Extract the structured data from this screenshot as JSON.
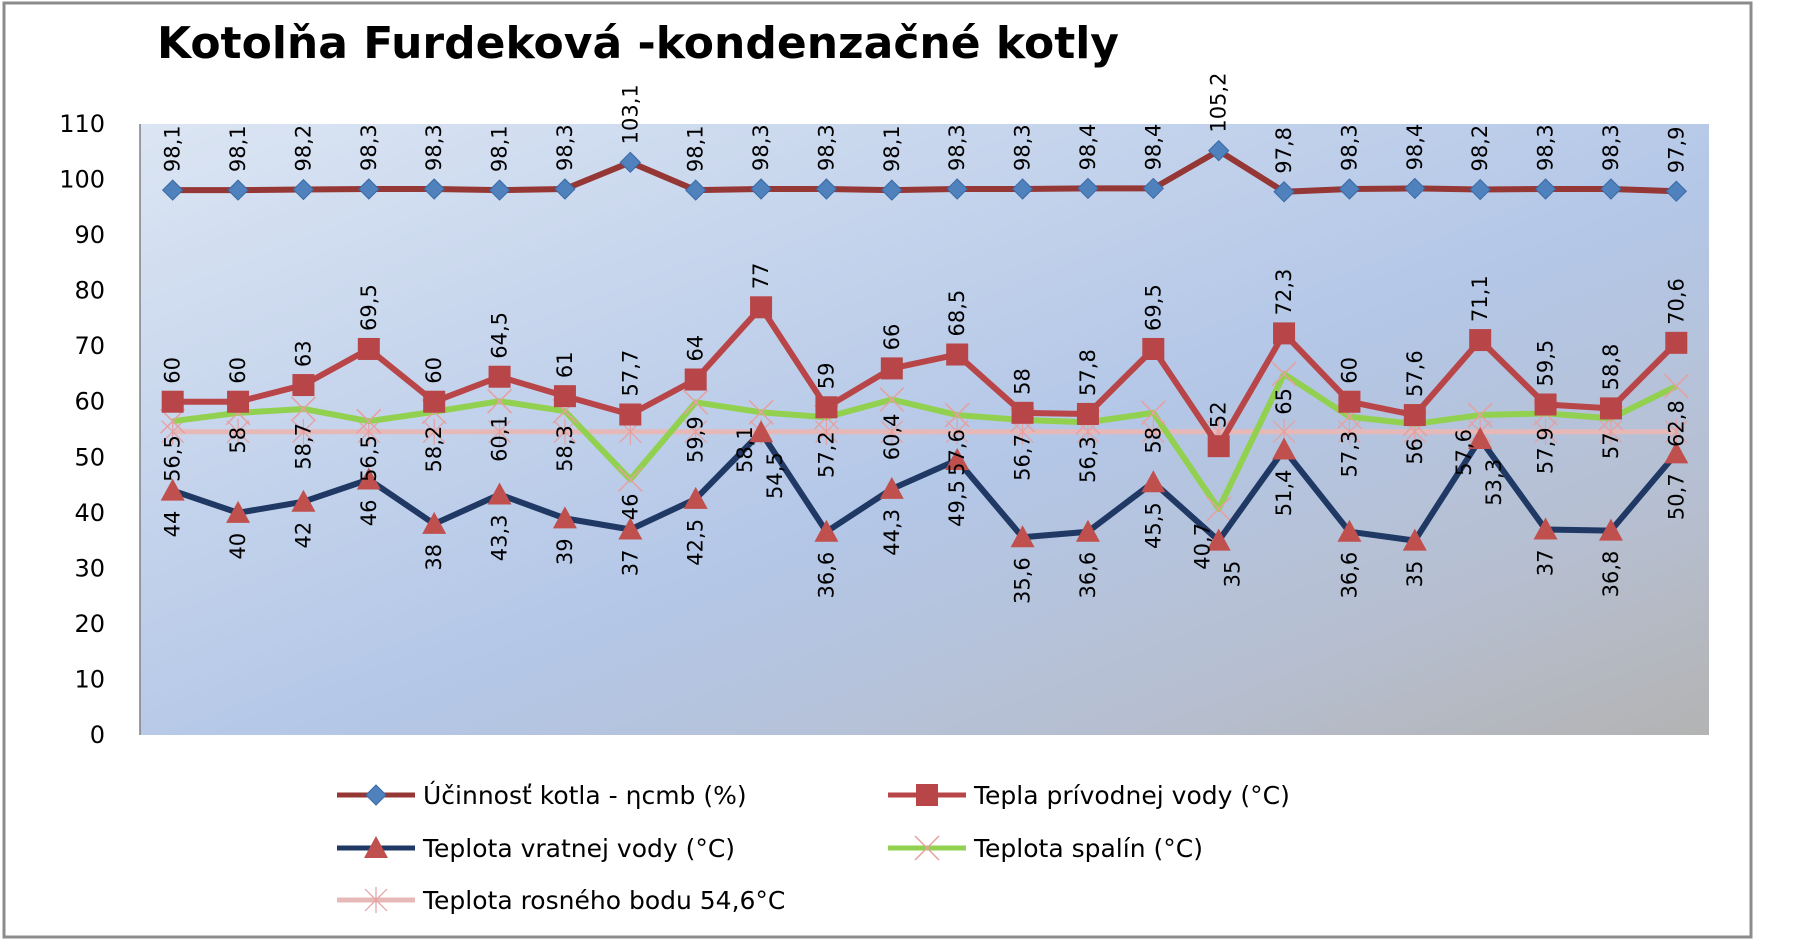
{
  "chart_data": {
    "type": "line",
    "title": "Kotolňa Furdeková -kondenzačné kotly",
    "xlabel": "",
    "ylabel": "",
    "ylim": [
      0,
      110
    ],
    "yticks": [
      0,
      10,
      20,
      30,
      40,
      50,
      60,
      70,
      80,
      90,
      100,
      110
    ],
    "grid": false,
    "legend_position": "bottom",
    "data_labels": true,
    "x": [
      1,
      2,
      3,
      4,
      5,
      6,
      7,
      8,
      9,
      10,
      11,
      12,
      13,
      14,
      15,
      16,
      17,
      18,
      19,
      20,
      21,
      22,
      23,
      24
    ],
    "series": [
      {
        "name": "Účinnosť kotla - ηcmb (%)",
        "marker": "diamond",
        "line_color": "#953735",
        "marker_color": "#4f81bd",
        "label_pos": "above",
        "values": [
          98.1,
          98.1,
          98.2,
          98.3,
          98.3,
          98.1,
          98.3,
          103.1,
          98.1,
          98.3,
          98.3,
          98.1,
          98.3,
          98.3,
          98.4,
          98.4,
          105.2,
          97.8,
          98.3,
          98.4,
          98.2,
          98.3,
          98.3,
          97.9
        ]
      },
      {
        "name": "Tepla prívodnej vody (°C)",
        "marker": "square",
        "line_color": "#b84547",
        "marker_color": "#b84547",
        "label_pos": "above",
        "values": [
          60,
          60,
          63,
          69.5,
          60,
          64.5,
          61,
          57.7,
          64,
          77,
          59,
          66,
          68.5,
          58,
          57.8,
          69.5,
          52,
          72.3,
          60,
          57.6,
          71.1,
          59.5,
          58.8,
          70.6
        ]
      },
      {
        "name": "Teplota vratnej vody (°C)",
        "marker": "triangle",
        "line_color": "#1f3864",
        "marker_color": "#c0504d",
        "label_pos": "below",
        "values": [
          44,
          40,
          42,
          46,
          38,
          43.3,
          39,
          37,
          42.5,
          54.5,
          36.6,
          44.3,
          49.5,
          35.6,
          36.6,
          45.5,
          35,
          51.4,
          36.6,
          35,
          53.3,
          37,
          36.8,
          50.7
        ]
      },
      {
        "name": "Teplota spalín (°C)",
        "marker": "x",
        "line_color": "#92d050",
        "marker_color": "#e6a0a0",
        "label_pos": "below",
        "values": [
          56.5,
          58,
          58.7,
          56.5,
          58.2,
          60.1,
          58.3,
          46,
          59.9,
          58.1,
          57.2,
          60.4,
          57.6,
          56.7,
          56.3,
          58,
          40.7,
          65,
          57.3,
          56,
          57.6,
          57.9,
          57,
          62.8
        ]
      },
      {
        "name": "Teplota rosného bodu 54,6°C",
        "marker": "star",
        "line_color": "#e6b9b8",
        "marker_color": "#e6a0a0",
        "label_pos": "none",
        "values": [
          54.6,
          54.6,
          54.6,
          54.6,
          54.6,
          54.6,
          54.6,
          54.6,
          54.6,
          54.6,
          54.6,
          54.6,
          54.6,
          54.6,
          54.6,
          54.6,
          54.6,
          54.6,
          54.6,
          54.6,
          54.6,
          54.6,
          54.6,
          54.6
        ]
      }
    ]
  }
}
